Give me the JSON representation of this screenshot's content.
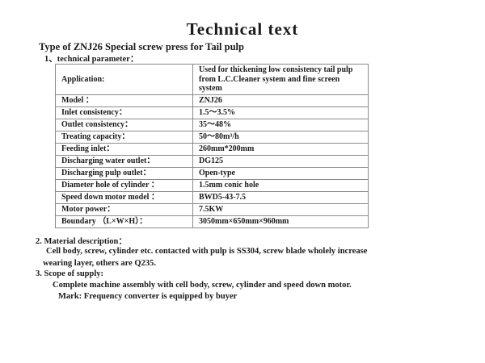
{
  "doc": {
    "title": "Technical text",
    "subtitle": "Type of ZNJ26 Special screw press for Tail pulp"
  },
  "sections": {
    "s1": {
      "heading": "1、technical parameter："
    },
    "s2": {
      "heading": "2. Material description：",
      "line1": "Cell body, screw, cylinder etc. contacted with pulp is SS304, screw blade wholely increase",
      "line2": "wearing layer, others are Q235."
    },
    "s3": {
      "heading": "3. Scope of supply:",
      "line1": "Complete machine assembly with cell body, screw, cylinder and speed down motor.",
      "mark": "Mark: Frequency converter is equipped by buyer"
    }
  },
  "table": {
    "rows": [
      {
        "label": "Application:",
        "value": "Used for thickening low consistency tail pulp from L.C.Cleaner system and fine screen system"
      },
      {
        "label": "Model ：",
        "value": "ZNJ26"
      },
      {
        "label": "Inlet consistency：",
        "value": "1.5～3.5%"
      },
      {
        "label": "Outlet consistency：",
        "value": "35～48%"
      },
      {
        "label": "Treating capacity：",
        "value": "50～80m³/h"
      },
      {
        "label": "Feeding inlet：",
        "value": "260mm*200mm"
      },
      {
        "label": "Discharging water outlet：",
        "value": "DG125"
      },
      {
        "label": "Discharging pulp outlet：",
        "value": "Open-type"
      },
      {
        "label": "Diameter hole of cylinder ：",
        "value": "1.5mm conic hole"
      },
      {
        "label": "Speed down motor model ：",
        "value": "BWD5-43-7.5"
      },
      {
        "label": "Motor power：",
        "value": "7.5KW"
      },
      {
        "label": "Boundary （L×W×H）：",
        "value": "3050mm×650mm×960mm"
      }
    ],
    "border_color": "#8a8a8a"
  },
  "colors": {
    "background": "#ffffff",
    "text": "#1a1a1a"
  }
}
